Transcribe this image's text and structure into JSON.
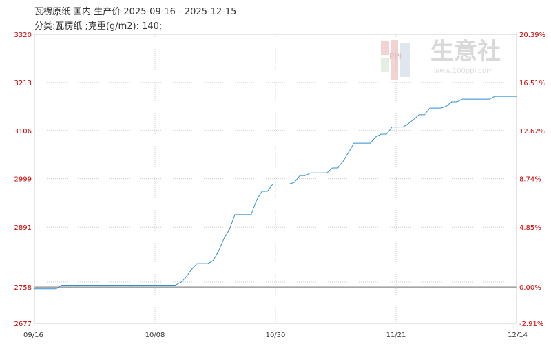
{
  "title": "瓦楞原纸 国内 生产价 2025-09-16 - 2025-12-15",
  "subtitle": "分类:瓦楞纸 ;克重(g/m2): 140;",
  "watermark": {
    "brand": "生意社",
    "url": "www.100ppi.com",
    "logo": "PPI"
  },
  "colors": {
    "line": "#2f8fd0",
    "left_axis": "#cc0000",
    "right_axis": "#cc0000",
    "x_axis": "#333333",
    "grid": "#cccccc",
    "baseline": "#888888"
  },
  "chart_data": {
    "type": "line",
    "title": "瓦楞原纸 国内 生产价 2025-09-16 - 2025-12-15",
    "x_ticks": [
      "09/16",
      "10/08",
      "10/30",
      "11/21",
      "12/14"
    ],
    "x_range": [
      "2025-09-16",
      "2025-12-14"
    ],
    "y_left_ticks": [
      3320,
      3213,
      3106,
      2999,
      2891,
      2758,
      2677
    ],
    "y_right_ticks": [
      "20.39%",
      "16.51%",
      "12.62%",
      "8.74%",
      "4.85%",
      "0.00%",
      "-2.91%"
    ],
    "ylim": [
      2677,
      3320
    ],
    "baseline": 2758,
    "grid": true,
    "series": [
      {
        "x": [
          "2025-09-16",
          "2025-09-20",
          "2025-09-21",
          "2025-09-25",
          "2025-09-30",
          "2025-10-05",
          "2025-10-10",
          "2025-10-12",
          "2025-10-13",
          "2025-10-14",
          "2025-10-15",
          "2025-10-16",
          "2025-10-17",
          "2025-10-18",
          "2025-10-19",
          "2025-10-20",
          "2025-10-21",
          "2025-10-22",
          "2025-10-23",
          "2025-10-24",
          "2025-10-25",
          "2025-10-26",
          "2025-10-27",
          "2025-10-28",
          "2025-10-29",
          "2025-10-30",
          "2025-10-31",
          "2025-11-01",
          "2025-11-02",
          "2025-11-03",
          "2025-11-04",
          "2025-11-05",
          "2025-11-06",
          "2025-11-07",
          "2025-11-08",
          "2025-11-09",
          "2025-11-10",
          "2025-11-11",
          "2025-11-12",
          "2025-11-13",
          "2025-11-14",
          "2025-11-15",
          "2025-11-16",
          "2025-11-17",
          "2025-11-18",
          "2025-11-19",
          "2025-11-20",
          "2025-11-21",
          "2025-11-22",
          "2025-11-23",
          "2025-11-24",
          "2025-11-25",
          "2025-11-26",
          "2025-11-27",
          "2025-11-28",
          "2025-11-29",
          "2025-11-30",
          "2025-12-01",
          "2025-12-02",
          "2025-12-03",
          "2025-12-04",
          "2025-12-05",
          "2025-12-06",
          "2025-12-07",
          "2025-12-08",
          "2025-12-09",
          "2025-12-10",
          "2025-12-11",
          "2025-12-12",
          "2025-12-13",
          "2025-12-14"
        ],
        "y": [
          2754,
          2754,
          2762,
          2762,
          2762,
          2762,
          2762,
          2762,
          2768,
          2780,
          2797,
          2810,
          2810,
          2810,
          2817,
          2838,
          2866,
          2886,
          2919,
          2919,
          2919,
          2919,
          2951,
          2971,
          2971,
          2987,
          2987,
          2987,
          2987,
          2991,
          3006,
          3006,
          3012,
          3012,
          3012,
          3012,
          3023,
          3023,
          3038,
          3058,
          3078,
          3078,
          3078,
          3078,
          3092,
          3098,
          3098,
          3114,
          3114,
          3114,
          3121,
          3131,
          3141,
          3141,
          3156,
          3156,
          3156,
          3160,
          3170,
          3170,
          3176,
          3176,
          3176,
          3176,
          3176,
          3176,
          3182,
          3182,
          3182,
          3182,
          3182
        ]
      }
    ]
  }
}
